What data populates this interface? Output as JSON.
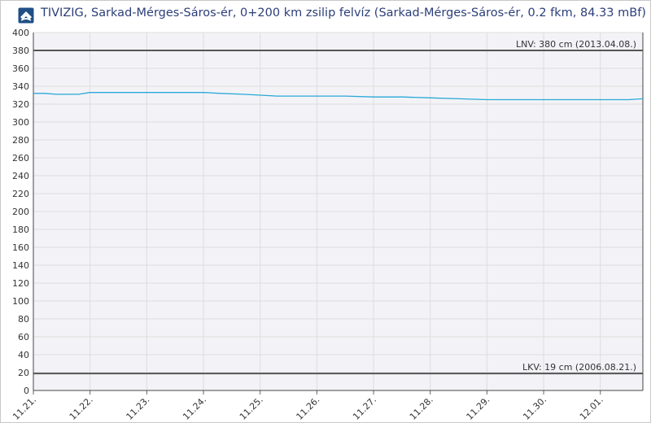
{
  "header": {
    "title": "TIVIZIG, Sarkad-Mérges-Sáros-ér, 0+200 km zsilip felvíz (Sarkad-Mérges-Sáros-ér, 0.2 fkm, 84.33 mBf)"
  },
  "colors": {
    "series": "#2aa8d8",
    "reference": "#555555",
    "grid": "#dddddd",
    "plot_bg": "#f3f3f7",
    "title": "#2c3e7a"
  },
  "chart_data": {
    "type": "line",
    "ylim": [
      0,
      400
    ],
    "yticks": [
      0,
      20,
      40,
      60,
      80,
      100,
      120,
      140,
      160,
      180,
      200,
      220,
      240,
      260,
      280,
      300,
      320,
      340,
      360,
      380,
      400
    ],
    "xlim": [
      0,
      10.75
    ],
    "xticks": [
      {
        "pos": 0,
        "label": "11.21."
      },
      {
        "pos": 1,
        "label": "11.22."
      },
      {
        "pos": 2,
        "label": "11.23."
      },
      {
        "pos": 3,
        "label": "11.24."
      },
      {
        "pos": 4,
        "label": "11.25."
      },
      {
        "pos": 5,
        "label": "11.26."
      },
      {
        "pos": 6,
        "label": "11.27."
      },
      {
        "pos": 7,
        "label": "11.28."
      },
      {
        "pos": 8,
        "label": "11.29."
      },
      {
        "pos": 9,
        "label": "11.30."
      },
      {
        "pos": 10,
        "label": "12.01."
      }
    ],
    "grid": true,
    "reference_lines": [
      {
        "value": 380,
        "label": "LNV: 380 cm (2013.04.08.)"
      },
      {
        "value": 19,
        "label": "LKV: 19 cm (2006.08.21.)"
      }
    ],
    "series": [
      {
        "x": [
          0,
          0.2,
          0.4,
          0.8,
          1.0,
          1.5,
          2.0,
          2.5,
          3.0,
          3.3,
          3.7,
          4.0,
          4.3,
          4.7,
          5.0,
          5.5,
          6.0,
          6.5,
          7.0,
          7.5,
          8.0,
          8.5,
          9.0,
          9.5,
          10.0,
          10.5,
          10.75
        ],
        "y": [
          332,
          332,
          331,
          331,
          333,
          333,
          333,
          333,
          333,
          332,
          331,
          330,
          329,
          329,
          329,
          329,
          328,
          328,
          327,
          326,
          325,
          325,
          325,
          325,
          325,
          325,
          326
        ]
      }
    ]
  }
}
